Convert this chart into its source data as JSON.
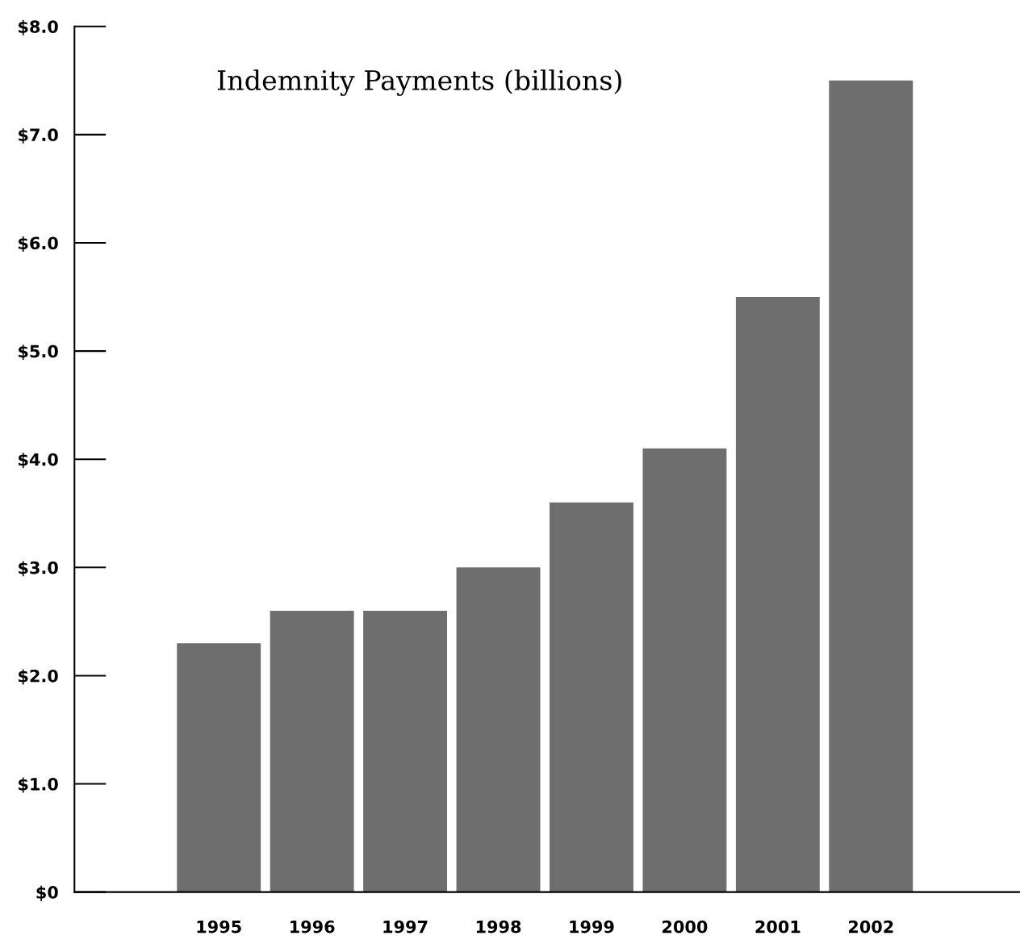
{
  "chart_data": {
    "type": "bar",
    "title": "Indemnity Payments (billions)",
    "categories": [
      "1995",
      "1996",
      "1997",
      "1998",
      "1999",
      "2000",
      "2001",
      "2002"
    ],
    "values": [
      2.3,
      2.6,
      2.6,
      3.0,
      3.6,
      4.1,
      5.5,
      7.5
    ],
    "color": "#6e6e6e",
    "ylim": [
      0,
      8
    ],
    "yticks": [
      {
        "value": 0,
        "label": "$0"
      },
      {
        "value": 1,
        "label": "$1.0"
      },
      {
        "value": 2,
        "label": "$2.0"
      },
      {
        "value": 3,
        "label": "$3.0"
      },
      {
        "value": 4,
        "label": "$4.0"
      },
      {
        "value": 5,
        "label": "$5.0"
      },
      {
        "value": 6,
        "label": "$6.0"
      },
      {
        "value": 7,
        "label": "$7.0"
      },
      {
        "value": 8,
        "label": "$8.0"
      }
    ],
    "grid": false,
    "legend": false
  }
}
